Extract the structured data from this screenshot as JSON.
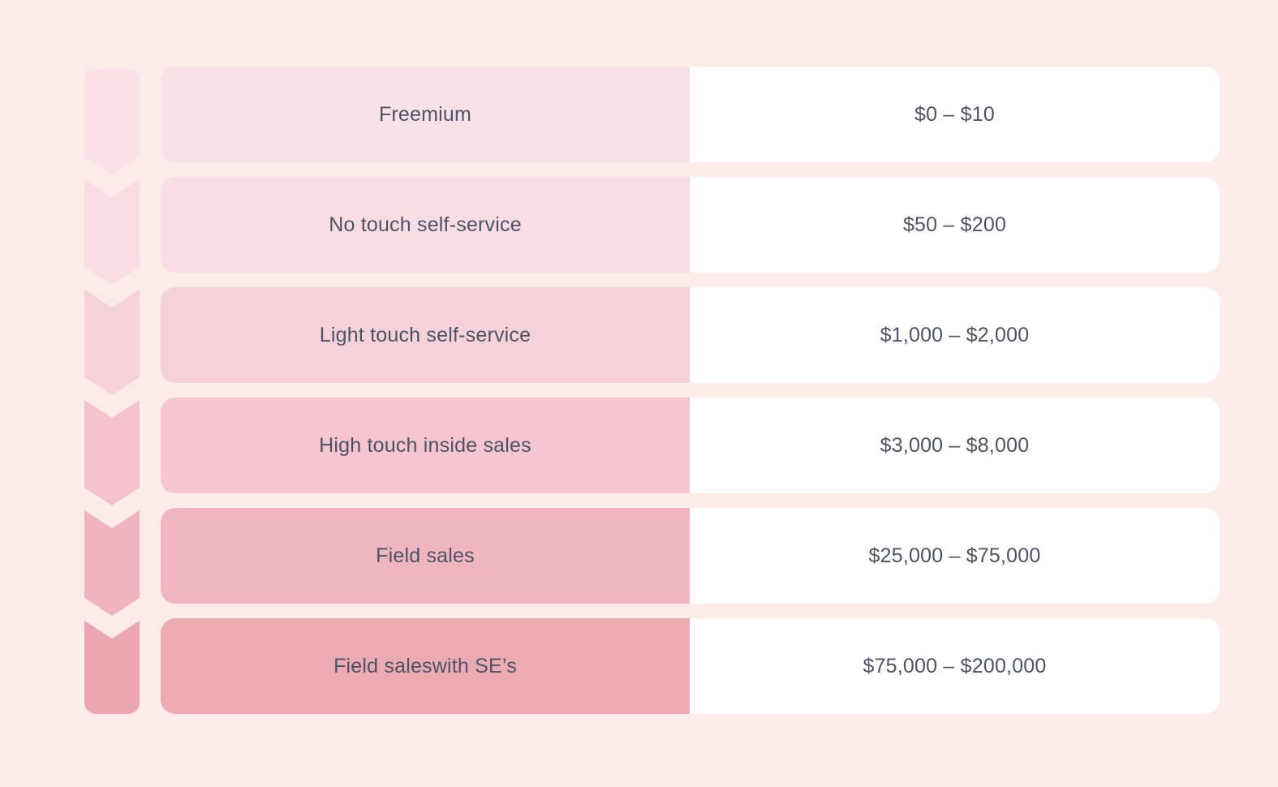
{
  "palette": {
    "background": "#fcebe9",
    "text": "#4d5365",
    "value_cell_bg": "#ffffff",
    "row_colors": [
      "#f9e1e8",
      "#f8dde4",
      "#f5d2da",
      "#f5c5d0",
      "#f0b6c0",
      "#ecaab3"
    ],
    "chevron_colors": [
      "#fae2e8",
      "#f9dde4",
      "#f6d2da",
      "#f5c3ce",
      "#f0b4bf",
      "#eba7b1"
    ]
  },
  "rows": [
    {
      "label": "Freemium",
      "value": "$0 – $10"
    },
    {
      "label": "No touch self-service",
      "value": "$50 – $200"
    },
    {
      "label": "Light touch self-service",
      "value": "$1,000 – $2,000"
    },
    {
      "label": "High touch inside sales",
      "value": "$3,000 – $8,000"
    },
    {
      "label": "Field sales",
      "value": "$25,000 – $75,000"
    },
    {
      "label": "Field saleswith SE’s",
      "value": "$75,000 – $200,000"
    }
  ]
}
